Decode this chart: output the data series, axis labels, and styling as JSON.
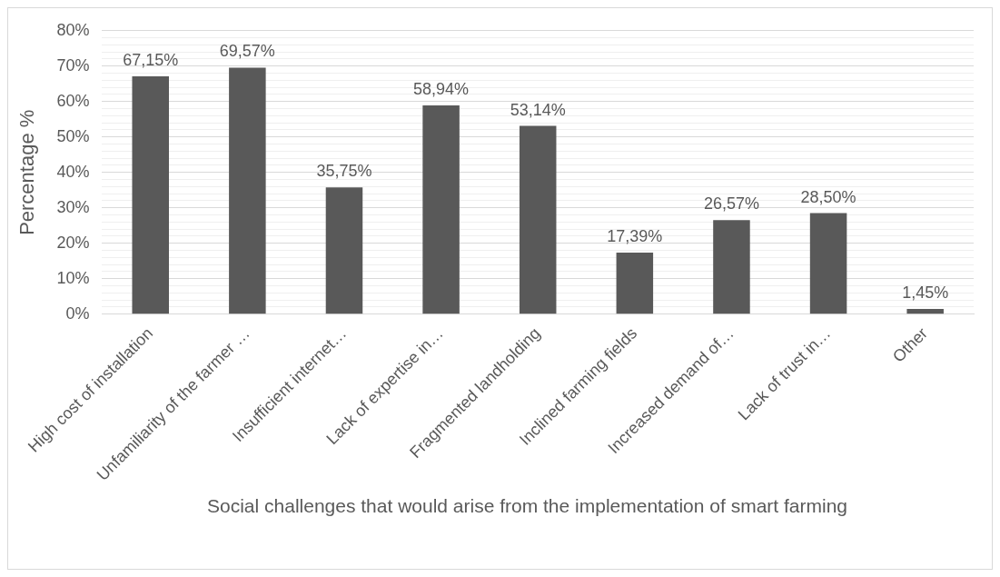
{
  "chart_data": {
    "type": "bar",
    "xlabel": "Social challenges that would arise from the implementation of smart farming",
    "ylabel": "Percentage %",
    "categories": [
      "High cost of installation",
      "Unfamiliarity of the farmer …",
      "Insufficient internet…",
      "Lack of expertise in…",
      "Fragmented landholding",
      "Inclined farming fields",
      "Increased demand of…",
      "Lack of trust in…",
      "Other"
    ],
    "values": [
      67.15,
      69.57,
      35.75,
      58.94,
      53.14,
      17.39,
      26.57,
      28.5,
      1.45
    ],
    "value_labels": [
      "67,15%",
      "69,57%",
      "35,75%",
      "58,94%",
      "53,14%",
      "17,39%",
      "26,57%",
      "28,50%",
      "1,45%"
    ],
    "color": "#595959",
    "ylim": [
      0,
      80
    ],
    "yticks": [
      {
        "value": 0,
        "label": "0%"
      },
      {
        "value": 2,
        "label": null
      },
      {
        "value": 4,
        "label": null
      },
      {
        "value": 6,
        "label": null
      },
      {
        "value": 8,
        "label": null
      },
      {
        "value": 10,
        "label": "10%"
      },
      {
        "value": 12,
        "label": null
      },
      {
        "value": 14,
        "label": null
      },
      {
        "value": 16,
        "label": null
      },
      {
        "value": 18,
        "label": null
      },
      {
        "value": 20,
        "label": "20%"
      },
      {
        "value": 22,
        "label": null
      },
      {
        "value": 24,
        "label": null
      },
      {
        "value": 26,
        "label": null
      },
      {
        "value": 28,
        "label": null
      },
      {
        "value": 30,
        "label": "30%"
      },
      {
        "value": 32,
        "label": null
      },
      {
        "value": 34,
        "label": null
      },
      {
        "value": 36,
        "label": null
      },
      {
        "value": 38,
        "label": null
      },
      {
        "value": 40,
        "label": "40%"
      },
      {
        "value": 42,
        "label": null
      },
      {
        "value": 44,
        "label": null
      },
      {
        "value": 46,
        "label": null
      },
      {
        "value": 48,
        "label": null
      },
      {
        "value": 50,
        "label": "50%"
      },
      {
        "value": 52,
        "label": null
      },
      {
        "value": 54,
        "label": null
      },
      {
        "value": 56,
        "label": null
      },
      {
        "value": 58,
        "label": null
      },
      {
        "value": 60,
        "label": "60%"
      },
      {
        "value": 62,
        "label": null
      },
      {
        "value": 64,
        "label": null
      },
      {
        "value": 66,
        "label": null
      },
      {
        "value": 68,
        "label": null
      },
      {
        "value": 70,
        "label": "70%"
      },
      {
        "value": 72,
        "label": null
      },
      {
        "value": 74,
        "label": null
      },
      {
        "value": 76,
        "label": null
      },
      {
        "value": 78,
        "label": null
      },
      {
        "value": 80,
        "label": "80%"
      }
    ],
    "grid": "y",
    "legend": false
  }
}
